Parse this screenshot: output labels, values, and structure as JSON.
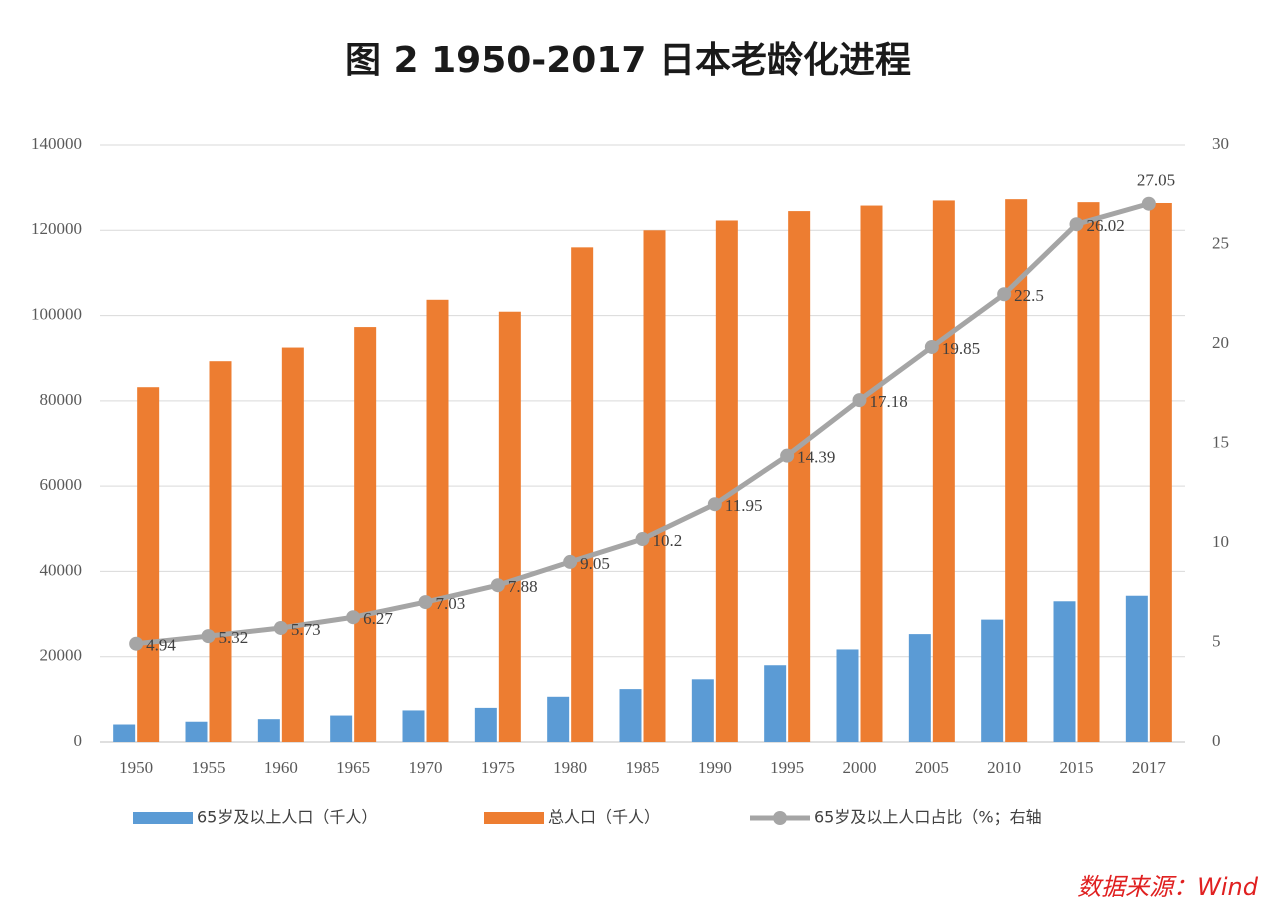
{
  "chart_data": {
    "type": "bar-line",
    "title": "图 2   1950-2017 日本老龄化进程",
    "source": "数据来源：Wind",
    "categories": [
      "1950",
      "1955",
      "1960",
      "1965",
      "1970",
      "1975",
      "1980",
      "1985",
      "1990",
      "1995",
      "2000",
      "2005",
      "2010",
      "2015",
      "2017"
    ],
    "series": [
      {
        "name": "65岁及以上人口（千人）",
        "color": "#5b9bd5",
        "type": "bar",
        "values": [
          4100,
          4750,
          5350,
          6200,
          7400,
          8000,
          10600,
          12400,
          14700,
          18000,
          21700,
          25300,
          28700,
          33000,
          34300
        ]
      },
      {
        "name": "总人口（千人）",
        "color": "#ed7d31",
        "type": "bar",
        "values": [
          83200,
          89300,
          92500,
          97300,
          103700,
          100900,
          116000,
          120000,
          122300,
          124500,
          125800,
          127000,
          127300,
          126600,
          126400
        ]
      },
      {
        "name": "65岁及以上人口占比（%；右轴",
        "color": "#a5a5a5",
        "type": "line",
        "axis": "y2",
        "values": [
          4.94,
          5.32,
          5.73,
          6.27,
          7.03,
          7.88,
          9.05,
          10.2,
          11.95,
          14.39,
          17.18,
          19.85,
          22.5,
          26.02,
          27.05
        ]
      }
    ],
    "ylim": [
      0,
      140000
    ],
    "yticks": [
      0,
      20000,
      40000,
      60000,
      80000,
      100000,
      120000,
      140000
    ],
    "y2lim": [
      0,
      30
    ],
    "y2ticks": [
      0,
      5,
      10,
      15,
      20,
      25,
      30
    ],
    "grid": true
  }
}
